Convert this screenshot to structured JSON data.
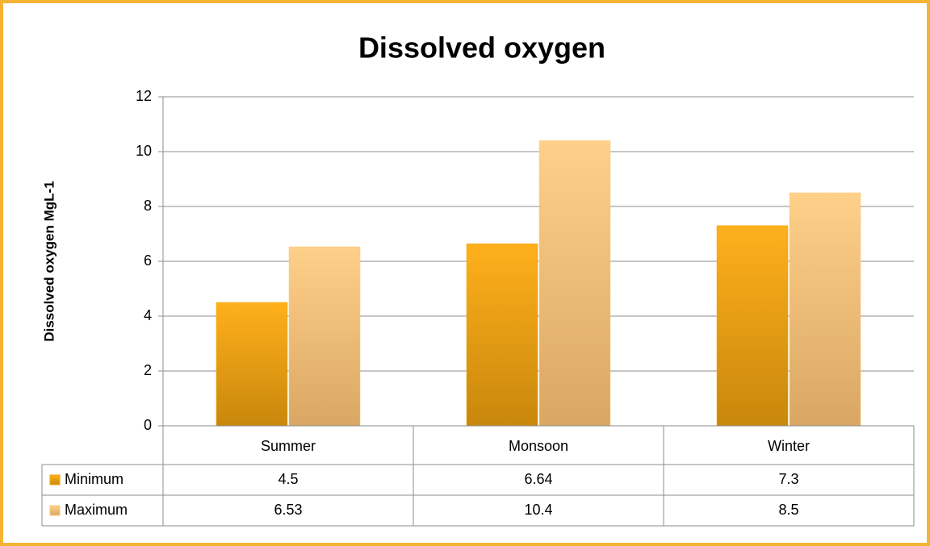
{
  "chart_data": {
    "type": "bar",
    "title": "Dissolved oxygen",
    "y_label": "Dissolved oxygen MgL-1",
    "categories": [
      "Summer",
      "Monsoon",
      "Winter"
    ],
    "series": [
      {
        "name": "Minimum",
        "color": "#f0a500",
        "values": [
          4.5,
          6.64,
          7.3
        ]
      },
      {
        "name": "Maximum",
        "color": "#f9c97c",
        "values": [
          6.53,
          10.4,
          8.5
        ]
      }
    ],
    "ylim": [
      0,
      12
    ],
    "yticks": [
      0,
      2,
      4,
      6,
      8,
      10,
      12
    ],
    "grid": true,
    "data_table": true
  }
}
